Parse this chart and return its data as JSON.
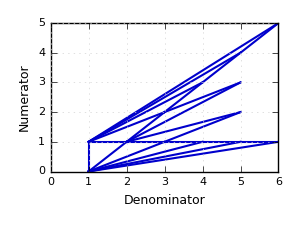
{
  "xlabel": "Denominator",
  "ylabel": "Numerator",
  "xlim": [
    0,
    6
  ],
  "ylim": [
    0,
    5
  ],
  "xticks": [
    0,
    1,
    2,
    3,
    4,
    5,
    6
  ],
  "yticks": [
    0,
    1,
    2,
    3,
    4,
    5
  ],
  "line_color": "#0000cc",
  "line_width": 1.5,
  "farey_order": 6
}
